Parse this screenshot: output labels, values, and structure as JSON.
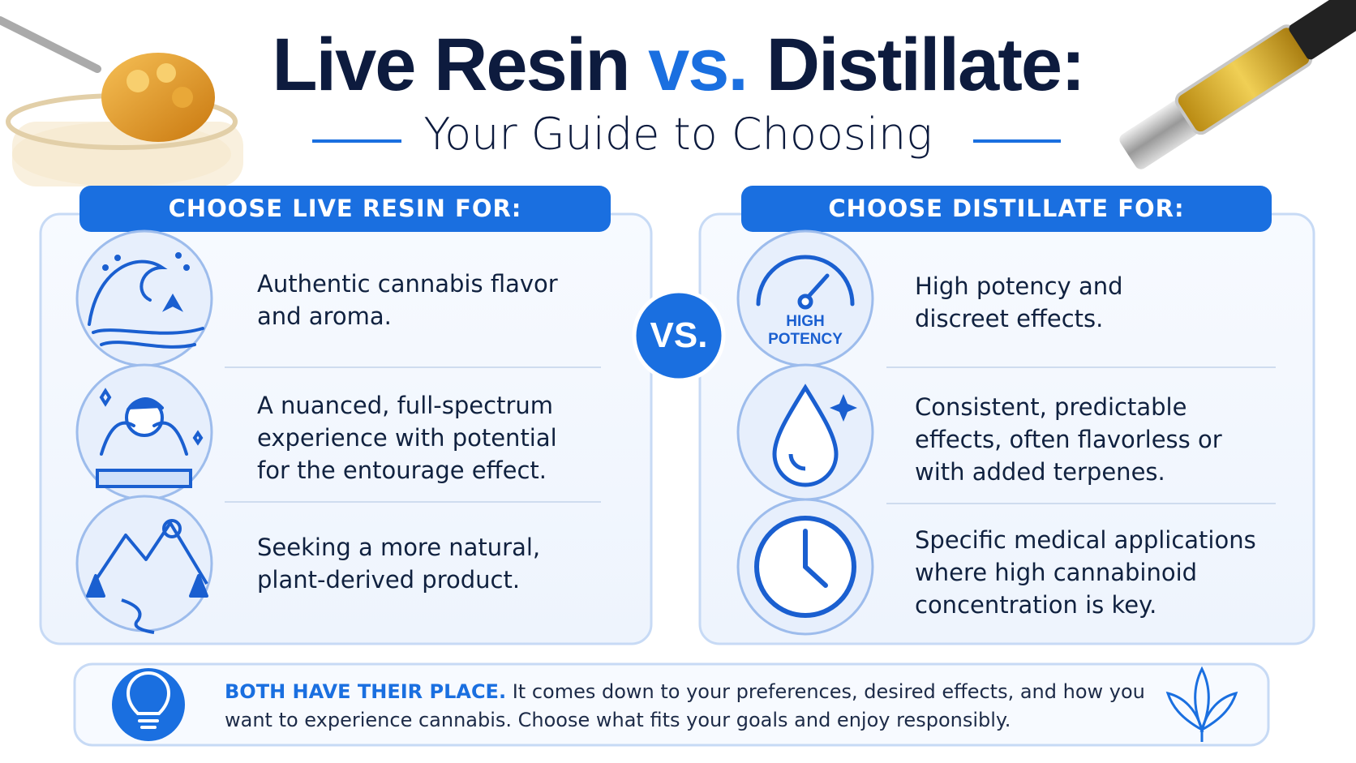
{
  "header": {
    "title_left": "Live Resin",
    "title_vs": "vs.",
    "title_right": "Distillate:",
    "subtitle": "Your Guide to Choosing"
  },
  "vs_badge": "VS.",
  "columns": [
    {
      "heading": "CHOOSE LIVE RESIN FOR:",
      "items": [
        {
          "text": "Authentic cannabis flavor and aroma."
        },
        {
          "text": "A nuanced, full-spectrum experience with potential for the entourage effect."
        },
        {
          "text": "Seeking a more natural, plant-derived product."
        }
      ]
    },
    {
      "heading": "CHOOSE DISTILLATE FOR:",
      "items": [
        {
          "text": "High potency and discreet effects.",
          "icon_label": [
            "HIGH",
            "POTENCY"
          ]
        },
        {
          "text": "Consistent, predictable effects, often flavorless or with added terpenes."
        },
        {
          "text": "Specific medical applications where high cannabinoid concentration is key."
        }
      ]
    }
  ],
  "footer": {
    "lead": "BOTH HAVE THEIR PLACE.",
    "text": "It comes down to your preferences, desired effects, and how you want to experience cannabis. Choose what fits your goals and enjoy responsibly."
  }
}
